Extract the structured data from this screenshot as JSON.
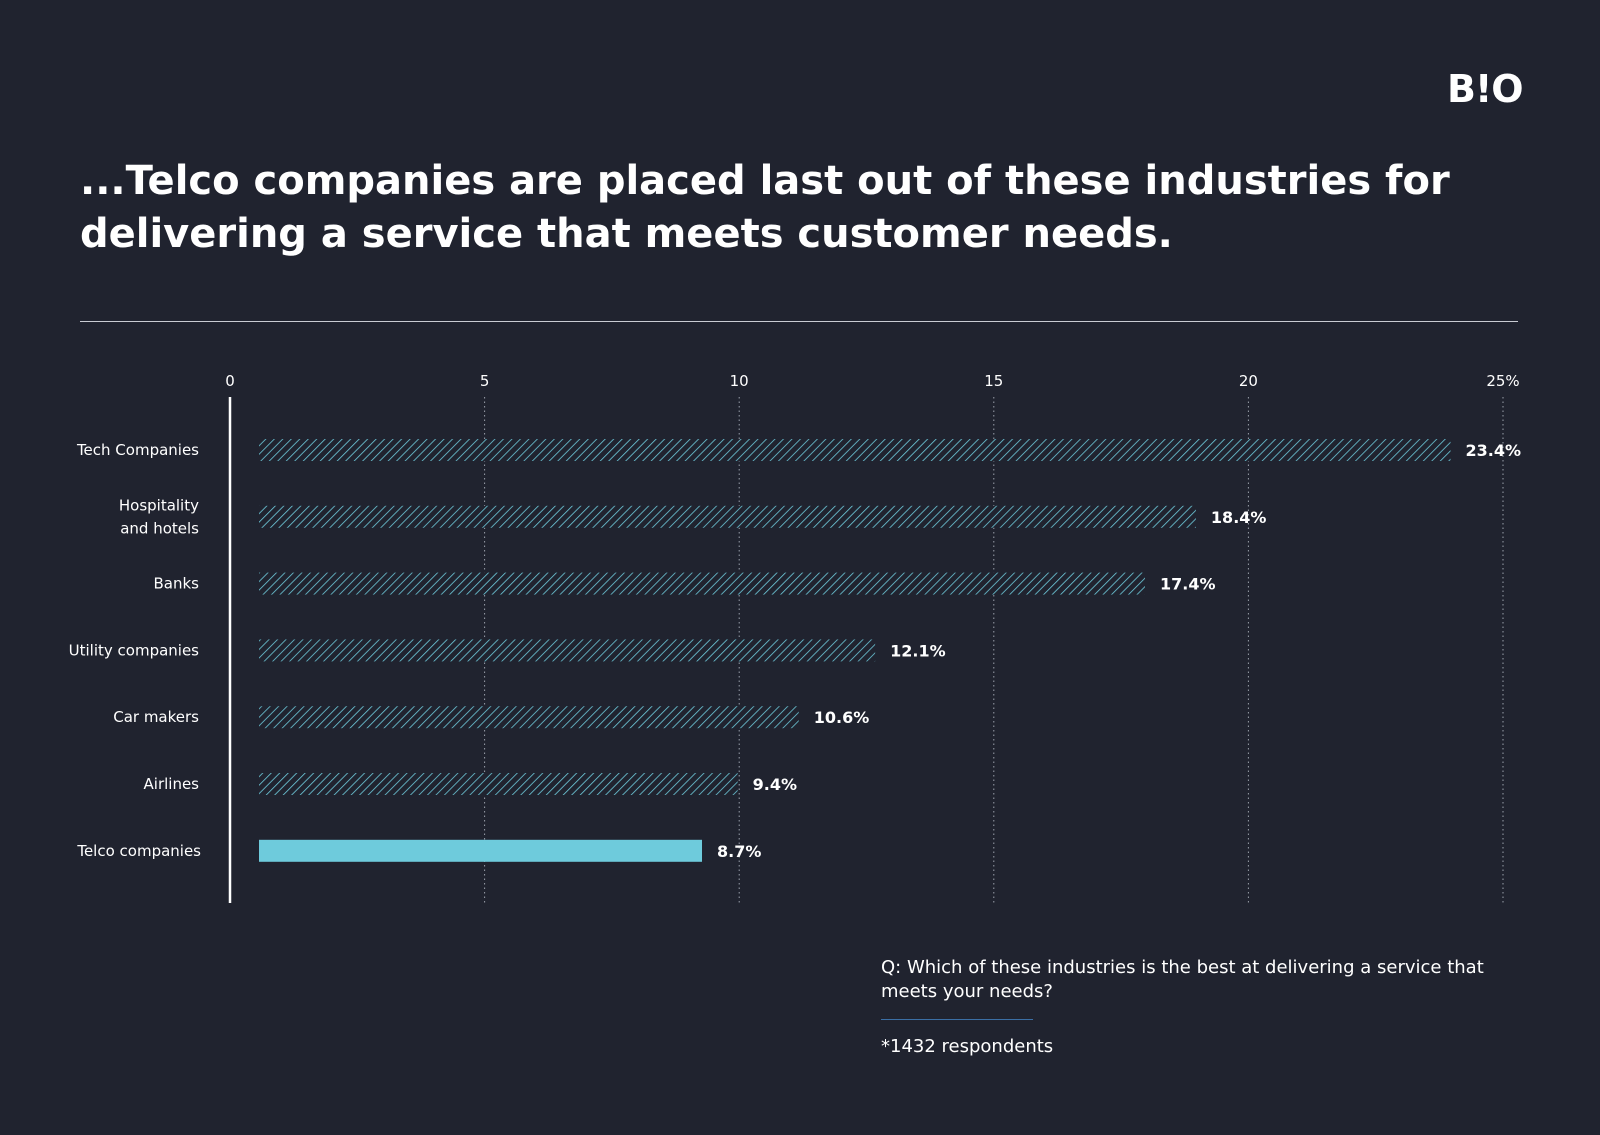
{
  "brand": {
    "logo_text": "B!O"
  },
  "title": "...Telco companies are placed last out of these industries for delivering a service that meets customer needs.",
  "footnote": {
    "question": "Q: Which of these industries is the best at delivering a service that meets your needs?",
    "respondents": "*1432 respondents"
  },
  "colors": {
    "background": "#20232f",
    "hatched_bar": "#6ecbdc",
    "highlight_bar": "#6ecbdc",
    "text": "#ffffff",
    "grid": "#9aa0ab"
  },
  "chart_data": {
    "type": "bar",
    "orientation": "horizontal",
    "categories": [
      "Tech Companies",
      "Hospitality\nand hotels",
      "Banks",
      "Utility companies",
      "Car makers",
      "Airlines",
      "Telco companies"
    ],
    "values": [
      23.4,
      18.4,
      17.4,
      12.1,
      10.6,
      9.4,
      8.7
    ],
    "value_labels": [
      "23.4%",
      "18.4%",
      "17.4%",
      "12.1%",
      "10.6%",
      "9.4%",
      "8.7%"
    ],
    "highlight": "Telco companies",
    "xlim": [
      0,
      25
    ],
    "x_ticks": [
      0,
      5,
      10,
      15,
      20,
      25
    ],
    "x_tick_labels": [
      "0",
      "5",
      "10",
      "15",
      "20",
      "25%"
    ],
    "grid": "vertical dotted",
    "legend": "none"
  }
}
